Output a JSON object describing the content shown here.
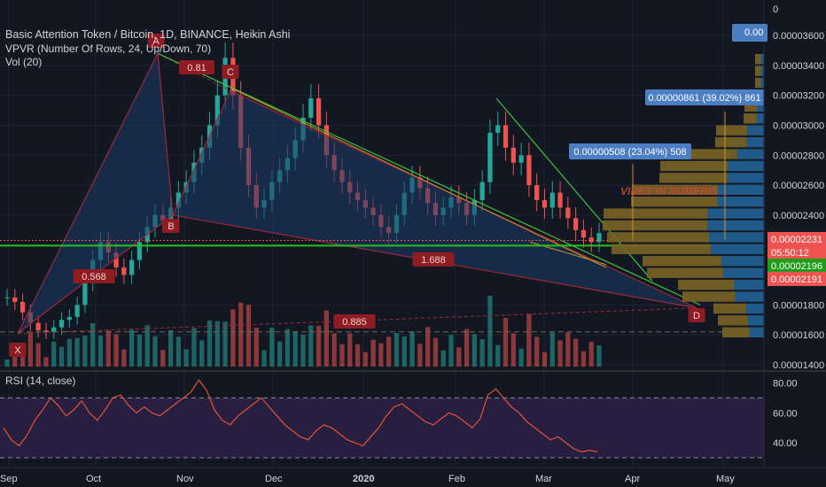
{
  "header": {
    "title": "Basic Attention Token / Bitcoin, 1D, BINANCE, Heikin Ashi",
    "indicator_vpvr": "VPVR (Number Of Rows, 24, Up/Down, 70)",
    "indicator_vol": "Vol (20)",
    "rsi_label": "RSI (14, close)",
    "top_button": "0.00"
  },
  "colors": {
    "background": "#131722",
    "grid": "#1e2330",
    "bull": "#26a69a",
    "bear": "#ef5350",
    "pattern_fill": "#1c3a66",
    "pattern_edge": "#9a2a3a",
    "support": "#23c21f",
    "trend_green": "#3fbf3f",
    "trend_orange": "#c8922c",
    "label_red": "#8e1c22",
    "tooltip_blue": "#4c7ec4",
    "rsi_line": "#e1543a",
    "rsi_band": "#2a1f44",
    "vp_up": "#1f5a8a",
    "vp_down": "#7a6425"
  },
  "price_axis": {
    "ticks": [
      "0",
      "0.00003600",
      "0.00003400",
      "0.00003200",
      "0.00003000",
      "0.00002800",
      "0.00002600",
      "0.00002400",
      "0.00001800",
      "0.00001600",
      "0.00001400"
    ],
    "current_price": "0.00002231",
    "countdown": "05:50:12",
    "level_green": "0.00002196",
    "level_red": "0.00002191"
  },
  "rsi_axis": {
    "ticks": [
      "80.00",
      "60.00",
      "40.00"
    ]
  },
  "time_axis": {
    "labels": [
      "Sep",
      "Oct",
      "Nov",
      "Dec",
      "2020",
      "Feb",
      "Mar",
      "Apr",
      "May"
    ]
  },
  "pattern_labels": {
    "X": "X",
    "A": "A",
    "B": "B",
    "C": "C",
    "D": "D",
    "ratio_ab": "0.81",
    "ratio_xa": "0.568",
    "ratio_bd": "1.688",
    "ratio_xd": "0.885"
  },
  "tooltips": {
    "target1": "0.00000508 (23.04%) 508",
    "target2": "0.00000861 (39.02%) 861"
  },
  "watermark": "VIRES IN NUMERIS",
  "chart_data": {
    "type": "candlestick",
    "symbol": "BATBTC",
    "timeframe": "1D",
    "candle_type": "Heikin Ashi",
    "x": [
      "Sep",
      "Oct",
      "Nov",
      "Dec",
      "2020",
      "Feb",
      "Mar",
      "Apr",
      "May"
    ],
    "ylim": [
      1.4e-05,
      3.6e-05
    ],
    "close_series": [
      1.85e-05,
      1.82e-05,
      1.75e-05,
      1.68e-05,
      1.63e-05,
      1.62e-05,
      1.65e-05,
      1.7e-05,
      1.72e-05,
      1.8e-05,
      1.95e-05,
      2.1e-05,
      2.22e-05,
      2.15e-05,
      2.05e-05,
      2e-05,
      2.1e-05,
      2.22e-05,
      2.32e-05,
      2.4e-05,
      2.36e-05,
      2.45e-05,
      2.55e-05,
      2.62e-05,
      2.75e-05,
      2.85e-05,
      3e-05,
      3.2e-05,
      3.45e-05,
      3.2e-05,
      2.85e-05,
      2.6e-05,
      2.45e-05,
      2.5e-05,
      2.62e-05,
      2.7e-05,
      2.78e-05,
      2.9e-05,
      3.05e-05,
      3.18e-05,
      3e-05,
      2.8e-05,
      2.7e-05,
      2.62e-05,
      2.55e-05,
      2.5e-05,
      2.45e-05,
      2.4e-05,
      2.32e-05,
      2.28e-05,
      2.4e-05,
      2.55e-05,
      2.65e-05,
      2.58e-05,
      2.48e-05,
      2.4e-05,
      2.45e-05,
      2.52e-05,
      2.48e-05,
      2.4e-05,
      2.5e-05,
      2.62e-05,
      2.95e-05,
      3e-05,
      2.85e-05,
      2.75e-05,
      2.8e-05,
      2.6e-05,
      2.5e-05,
      2.45e-05,
      2.55e-05,
      2.45e-05,
      2.38e-05,
      2.3e-05,
      2.25e-05,
      2.22e-05,
      2.28e-05
    ],
    "price_levels": {
      "current": 2.231e-05,
      "support_green": 2.196e-05,
      "support_red": 2.191e-05
    },
    "harmonic_points": {
      "X": 1.61e-05,
      "A": 3.48e-05,
      "B": 2.4e-05,
      "C": 3.23e-05,
      "D": 1.78e-05
    },
    "rsi": {
      "period": 14,
      "ylim": [
        30,
        85
      ],
      "levels": [
        70,
        30
      ],
      "values": [
        50,
        42,
        38,
        45,
        55,
        62,
        70,
        65,
        58,
        62,
        68,
        60,
        55,
        62,
        70,
        72,
        65,
        60,
        64,
        60,
        58,
        62,
        66,
        70,
        74,
        82,
        75,
        62,
        55,
        52,
        58,
        62,
        66,
        70,
        64,
        58,
        52,
        48,
        44,
        42,
        48,
        52,
        50,
        46,
        42,
        40,
        38,
        44,
        50,
        58,
        64,
        66,
        62,
        58,
        54,
        52,
        56,
        60,
        58,
        54,
        50,
        56,
        72,
        76,
        70,
        64,
        60,
        54,
        50,
        46,
        42,
        44,
        40,
        36,
        34,
        35,
        34
      ]
    },
    "volume_profile_rows": 24
  }
}
